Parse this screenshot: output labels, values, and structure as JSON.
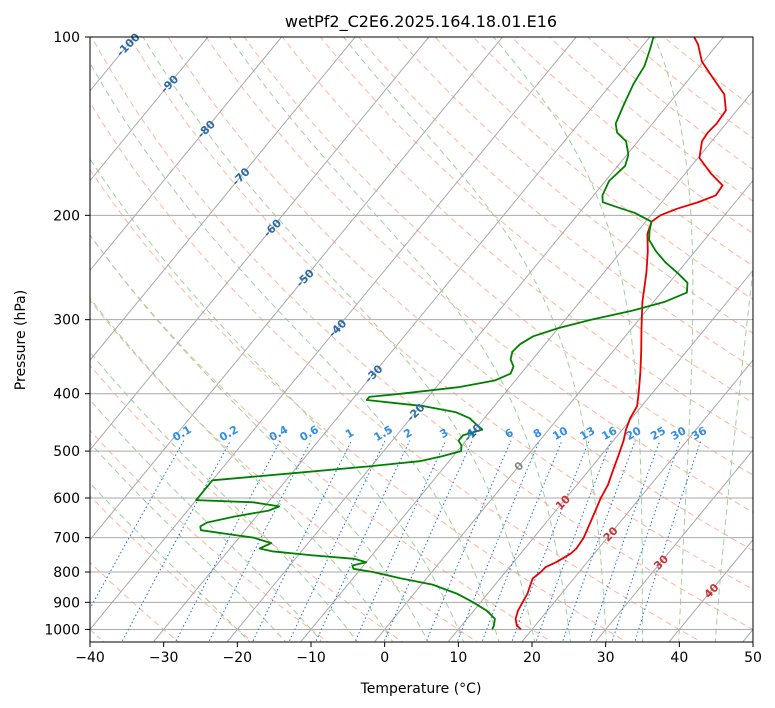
{
  "chart_data": {
    "type": "line",
    "title": "wetPf2_C2E6.2025.164.18.01.E16",
    "xlabel": "Temperature (°C)",
    "ylabel": "Pressure (hPa)",
    "xlim": [
      -40,
      50
    ],
    "ylim": [
      1050,
      100
    ],
    "y_scale": "log",
    "x_ticks": [
      -40,
      -30,
      -20,
      -10,
      0,
      10,
      20,
      30,
      40,
      50
    ],
    "y_ticks": [
      100,
      200,
      300,
      400,
      500,
      600,
      700,
      800,
      900,
      1000
    ],
    "grid": true,
    "skew_per_decade": 66,
    "colors": {
      "temperature": "#e60000",
      "dewpoint": "#008000",
      "isotherm": "#aaaaaa",
      "isobar": "#aaaaaa",
      "dry_adiabat": "#ffb59a",
      "moist_adiabat": "#9fd09f",
      "mixing_ratio": "#1e78d8",
      "mixing_label": "#2f8fe6",
      "isotherm_label": "#2a6aa8",
      "high_isotherm_label": "#d03030",
      "outer_adiabat": "#e0c8b0"
    },
    "series": [
      {
        "type": "temperature",
        "points": [
          [
            1000,
            18.5
          ],
          [
            985,
            17.5
          ],
          [
            960,
            16.6
          ],
          [
            930,
            16.0
          ],
          [
            900,
            15.7
          ],
          [
            870,
            15.4
          ],
          [
            850,
            15.0
          ],
          [
            820,
            14.4
          ],
          [
            800,
            14.8
          ],
          [
            785,
            14.9
          ],
          [
            770,
            15.8
          ],
          [
            745,
            16.8
          ],
          [
            730,
            17.0
          ],
          [
            700,
            16.8
          ],
          [
            650,
            15.8
          ],
          [
            600,
            14.7
          ],
          [
            570,
            14.2
          ],
          [
            540,
            13.3
          ],
          [
            510,
            12.4
          ],
          [
            480,
            11.4
          ],
          [
            460,
            10.5
          ],
          [
            440,
            9.8
          ],
          [
            420,
            9.4
          ],
          [
            400,
            8.2
          ],
          [
            370,
            6.2
          ],
          [
            340,
            3.9
          ],
          [
            310,
            1.3
          ],
          [
            280,
            -1.5
          ],
          [
            250,
            -4.2
          ],
          [
            230,
            -6.4
          ],
          [
            215,
            -8.4
          ],
          [
            205,
            -9.2
          ],
          [
            200,
            -8.7
          ],
          [
            195,
            -7.2
          ],
          [
            190,
            -5.0
          ],
          [
            185,
            -3.4
          ],
          [
            178,
            -3.6
          ],
          [
            170,
            -6.5
          ],
          [
            160,
            -9.8
          ],
          [
            150,
            -11.3
          ],
          [
            145,
            -11.5
          ],
          [
            140,
            -11.3
          ],
          [
            133,
            -11.5
          ],
          [
            125,
            -13.5
          ],
          [
            117,
            -17.0
          ],
          [
            110,
            -20.2
          ],
          [
            103,
            -22.6
          ],
          [
            100,
            -24.0
          ]
        ]
      },
      {
        "type": "dewpoint",
        "points": [
          [
            1000,
            14.6
          ],
          [
            985,
            14.4
          ],
          [
            960,
            13.8
          ],
          [
            930,
            11.8
          ],
          [
            900,
            9.0
          ],
          [
            870,
            5.8
          ],
          [
            840,
            1.5
          ],
          [
            820,
            -3.5
          ],
          [
            800,
            -8.0
          ],
          [
            790,
            -11.0
          ],
          [
            780,
            -11.5
          ],
          [
            770,
            -10.0
          ],
          [
            760,
            -12.0
          ],
          [
            750,
            -18.0
          ],
          [
            738,
            -24.0
          ],
          [
            730,
            -26.0
          ],
          [
            715,
            -25.0
          ],
          [
            700,
            -28.0
          ],
          [
            690,
            -32.0
          ],
          [
            680,
            -36.0
          ],
          [
            670,
            -36.5
          ],
          [
            660,
            -36.0
          ],
          [
            645,
            -33.0
          ],
          [
            630,
            -29.0
          ],
          [
            620,
            -28.0
          ],
          [
            610,
            -32.0
          ],
          [
            605,
            -40.0
          ],
          [
            560,
            -40.0
          ],
          [
            545,
            -30.0
          ],
          [
            530,
            -20.0
          ],
          [
            520,
            -14.0
          ],
          [
            510,
            -11.5
          ],
          [
            500,
            -9.5
          ],
          [
            490,
            -10.0
          ],
          [
            480,
            -11.0
          ],
          [
            470,
            -11.0
          ],
          [
            460,
            -9.0
          ],
          [
            450,
            -10.5
          ],
          [
            440,
            -12.0
          ],
          [
            430,
            -14.5
          ],
          [
            420,
            -19.5
          ],
          [
            410,
            -28.0
          ],
          [
            405,
            -28.0
          ],
          [
            400,
            -24.0
          ],
          [
            390,
            -17.0
          ],
          [
            380,
            -12.8
          ],
          [
            370,
            -11.4
          ],
          [
            360,
            -11.8
          ],
          [
            350,
            -13.0
          ],
          [
            340,
            -13.6
          ],
          [
            330,
            -13.4
          ],
          [
            320,
            -12.5
          ],
          [
            310,
            -10.0
          ],
          [
            300,
            -6.5
          ],
          [
            290,
            -2.0
          ],
          [
            280,
            1.5
          ],
          [
            270,
            3.5
          ],
          [
            260,
            2.5
          ],
          [
            250,
            0.0
          ],
          [
            240,
            -2.8
          ],
          [
            230,
            -5.3
          ],
          [
            220,
            -7.5
          ],
          [
            212,
            -8.5
          ],
          [
            205,
            -9.2
          ],
          [
            198,
            -12.5
          ],
          [
            193,
            -16.0
          ],
          [
            190,
            -18.0
          ],
          [
            185,
            -18.8
          ],
          [
            175,
            -19.5
          ],
          [
            165,
            -19.0
          ],
          [
            158,
            -19.8
          ],
          [
            150,
            -21.6
          ],
          [
            145,
            -23.8
          ],
          [
            140,
            -25.0
          ],
          [
            130,
            -26.0
          ],
          [
            120,
            -27.0
          ],
          [
            112,
            -27.5
          ],
          [
            105,
            -28.6
          ],
          [
            100,
            -29.5
          ]
        ]
      }
    ],
    "mixing_ratio_labels": [
      "0.1",
      "0.2",
      "0.4",
      "0.6",
      "1",
      "1.5",
      "2",
      "3",
      "4",
      "6",
      "8",
      "10",
      "13",
      "16",
      "20",
      "25",
      "30",
      "36"
    ],
    "isotherm_labels": [
      "-100",
      "-90",
      "-80",
      "-70",
      "-60",
      "-50",
      "-40",
      "-30",
      "-20",
      "-10",
      "0"
    ],
    "high_isotherm_labels": [
      "10",
      "20",
      "30",
      "40"
    ]
  }
}
